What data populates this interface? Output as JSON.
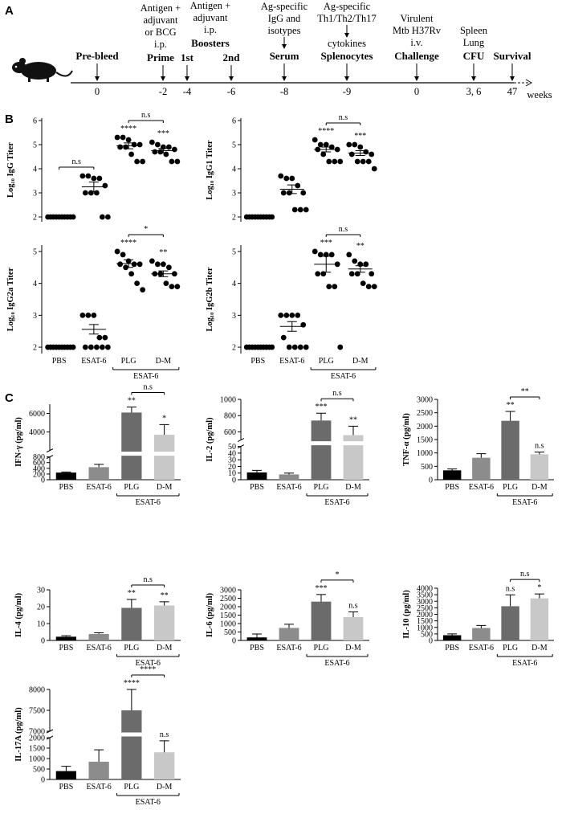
{
  "panel_labels": [
    "A",
    "B",
    "C"
  ],
  "timeline": {
    "events": [
      {
        "label": "Pre-bleed",
        "time": "0"
      },
      {
        "above": [
          "Antigen +",
          "adjuvant",
          "or BCG",
          "i.p."
        ],
        "label": "Prime",
        "time": "-2"
      },
      {
        "above": [
          "Antigen +",
          "adjuvant",
          "i.p."
        ],
        "label": "Boosters",
        "sub": "1st",
        "time": "-4"
      },
      {
        "sub": "2nd",
        "time": "-6"
      },
      {
        "above": [
          "Ag-specific",
          "IgG and",
          "isotypes"
        ],
        "label": "Serum",
        "time": "-8"
      },
      {
        "above": [
          "Ag-specific",
          "Th1/Th2/Th17",
          "cytokines"
        ],
        "label": "Splenocytes",
        "time": "-9"
      },
      {
        "above": [
          "Virulent",
          "Mtb H37Rv",
          "i.v."
        ],
        "label": "Challenge",
        "time": "0"
      },
      {
        "above": [
          "Spleen",
          "Lung"
        ],
        "label": "CFU",
        "time": "3, 6"
      },
      {
        "label": "Survival",
        "time": "47"
      }
    ],
    "unit": "weeks"
  },
  "chart_data": [
    {
      "type": "dotplot",
      "y_label": "Log₁₀ IgG Titer",
      "ylim": [
        1.8,
        6.1
      ],
      "yticks": [
        2,
        3,
        4,
        5,
        6
      ],
      "points": [
        [
          2,
          2,
          2,
          2,
          2,
          2,
          2,
          2,
          2,
          2
        ],
        [
          3.7,
          3.7,
          3.6,
          3.6,
          3.3,
          3.0,
          3.0,
          3.0,
          2.0,
          2.0
        ],
        [
          5.3,
          5.3,
          5.2,
          5.0,
          5.0,
          4.9,
          4.9,
          4.6,
          4.3,
          4.3
        ],
        [
          5.1,
          5.0,
          4.9,
          4.9,
          4.8,
          4.7,
          4.7,
          4.6,
          4.3,
          4.3
        ]
      ],
      "means": [
        2,
        3.25,
        4.95,
        4.75
      ],
      "sems": [
        0,
        0.2,
        0.12,
        0.09
      ],
      "annotations": [
        null,
        null,
        "****",
        "***"
      ],
      "brackets": [
        "n.s",
        null,
        "n.s",
        null
      ]
    },
    {
      "type": "dotplot",
      "y_label": "Log₁₀ IgG1 Titer",
      "ylim": [
        1.8,
        6.1
      ],
      "yticks": [
        2,
        3,
        4,
        5,
        6
      ],
      "points": [
        [
          2,
          2,
          2,
          2,
          2,
          2,
          2,
          2,
          2,
          2
        ],
        [
          3.7,
          3.6,
          3.6,
          3.3,
          3.0,
          3.0,
          3.0,
          2.3,
          2.3,
          2.3
        ],
        [
          5.2,
          5.0,
          5.0,
          4.9,
          4.8,
          4.8,
          4.6,
          4.3,
          4.3,
          4.3
        ],
        [
          5.0,
          5.0,
          4.9,
          4.7,
          4.6,
          4.6,
          4.3,
          4.3,
          4.3,
          4.0
        ]
      ],
      "means": [
        2,
        3.15,
        4.8,
        4.65
      ],
      "sems": [
        0,
        0.18,
        0.1,
        0.1
      ],
      "annotations": [
        null,
        null,
        "****",
        "***"
      ],
      "brackets": [
        null,
        null,
        "n.s",
        null
      ]
    },
    {
      "type": "dotplot",
      "y_label": "Log₁₀ IgG2a Titer",
      "ylim": [
        1.8,
        5.2
      ],
      "yticks": [
        2,
        3,
        4,
        5
      ],
      "categories": [
        "PBS",
        "ESAT-6",
        "PLG",
        "D-M"
      ],
      "group_label": "ESAT-6",
      "points": [
        [
          2,
          2,
          2,
          2,
          2,
          2,
          2,
          2,
          2,
          2
        ],
        [
          3.0,
          3.0,
          3.0,
          2.3,
          2.3,
          2.0,
          2.0,
          2.0,
          2.0,
          2.0
        ],
        [
          5.0,
          4.9,
          4.7,
          4.6,
          4.6,
          4.6,
          4.5,
          4.3,
          4.0,
          3.8
        ],
        [
          4.7,
          4.6,
          4.6,
          4.5,
          4.3,
          4.3,
          4.3,
          4.0,
          3.9,
          3.9
        ]
      ],
      "means": [
        2,
        2.56,
        4.62,
        4.3
      ],
      "sems": [
        0,
        0.15,
        0.12,
        0.09
      ],
      "annotations": [
        null,
        null,
        "****",
        "**"
      ],
      "brackets": [
        null,
        null,
        "*",
        null
      ]
    },
    {
      "type": "dotplot",
      "y_label": "Log₁₀ IgG2b Titer",
      "ylim": [
        1.8,
        5.2
      ],
      "yticks": [
        2,
        3,
        4,
        5
      ],
      "categories": [
        "PBS",
        "ESAT-6",
        "PLG",
        "D-M"
      ],
      "group_label": "ESAT-6",
      "points": [
        [
          2,
          2,
          2,
          2,
          2,
          2,
          2,
          2,
          2,
          2
        ],
        [
          3.0,
          3.0,
          3.0,
          3.0,
          2.7,
          2.3,
          2.0,
          2.0,
          2.0,
          2.0
        ],
        [
          5.0,
          4.9,
          4.9,
          4.9,
          4.6,
          4.3,
          4.3,
          3.9,
          3.9,
          2.0
        ],
        [
          4.9,
          4.7,
          4.6,
          4.6,
          4.3,
          4.3,
          4.3,
          4.0,
          3.9,
          3.9
        ]
      ],
      "means": [
        2,
        2.65,
        4.6,
        4.45
      ],
      "sems": [
        0,
        0.15,
        0.25,
        0.1
      ],
      "annotations": [
        null,
        null,
        "***",
        "**"
      ],
      "brackets": [
        null,
        null,
        "n.s",
        null
      ]
    },
    {
      "type": "bar",
      "y_label": "IFN-γ (pg/ml)",
      "categories": [
        "PBS",
        "ESAT-6",
        "PLG",
        "D-M"
      ],
      "group_label": "ESAT-6",
      "colors": [
        "#000000",
        "#8c8c8c",
        "#6b6b6b",
        "#c8c8c8"
      ],
      "values": [
        250,
        440,
        6100,
        3700
      ],
      "errors": [
        20,
        100,
        600,
        1100
      ],
      "annotations": [
        null,
        null,
        "**",
        "*"
      ],
      "brackets": [
        null,
        null,
        "n.s",
        null
      ],
      "ylim": [
        0,
        7000
      ],
      "axis_break": [
        800,
        2000
      ],
      "yticks": [
        0,
        200,
        400,
        600,
        800,
        4000,
        6000
      ]
    },
    {
      "type": "bar",
      "y_label": "IL-2 (pg/ml)",
      "categories": [
        "PBS",
        "ESAT-6",
        "PLG",
        "D-M"
      ],
      "group_label": "ESAT-6",
      "colors": [
        "#000000",
        "#8c8c8c",
        "#6b6b6b",
        "#c8c8c8"
      ],
      "values": [
        11,
        8,
        740,
        560
      ],
      "errors": [
        3,
        2,
        90,
        110
      ],
      "annotations": [
        null,
        null,
        "***",
        "**"
      ],
      "brackets": [
        null,
        null,
        "n.s",
        null
      ],
      "ylim": [
        0,
        1000
      ],
      "axis_break": [
        50,
        500
      ],
      "yticks": [
        0,
        10,
        20,
        30,
        40,
        50,
        600,
        800,
        1000
      ]
    },
    {
      "type": "bar",
      "y_label": "TNF-α (pg/ml)",
      "categories": [
        "PBS",
        "ESAT-6",
        "PLG",
        "D-M"
      ],
      "group_label": "ESAT-6",
      "colors": [
        "#000000",
        "#8c8c8c",
        "#6b6b6b",
        "#c8c8c8"
      ],
      "values": [
        350,
        820,
        2200,
        950
      ],
      "errors": [
        50,
        150,
        350,
        80
      ],
      "annotations": [
        null,
        null,
        "**",
        "n.s"
      ],
      "brackets": [
        null,
        null,
        "**",
        null
      ],
      "ylim": [
        0,
        3000
      ],
      "yticks": [
        0,
        500,
        1000,
        1500,
        2000,
        2500,
        3000
      ]
    },
    {
      "type": "bar",
      "y_label": "IL-4 (pg/ml)",
      "categories": [
        "PBS",
        "ESAT-6",
        "PLG",
        "D-M"
      ],
      "group_label": "ESAT-6",
      "colors": [
        "#000000",
        "#8c8c8c",
        "#6b6b6b",
        "#c8c8c8"
      ],
      "values": [
        2.2,
        3.8,
        19.3,
        20.7
      ],
      "errors": [
        0.6,
        0.7,
        5,
        2.2
      ],
      "annotations": [
        null,
        null,
        "**",
        "**"
      ],
      "brackets": [
        null,
        null,
        "n.s",
        null
      ],
      "ylim": [
        0,
        30
      ],
      "yticks": [
        0,
        10,
        20,
        30
      ]
    },
    {
      "type": "bar",
      "y_label": "IL-6 (pg/ml)",
      "categories": [
        "PBS",
        "ESAT-6",
        "PLG",
        "D-M"
      ],
      "group_label": "ESAT-6",
      "colors": [
        "#000000",
        "#8c8c8c",
        "#6b6b6b",
        "#c8c8c8"
      ],
      "values": [
        180,
        740,
        2300,
        1380
      ],
      "errors": [
        200,
        220,
        420,
        310
      ],
      "annotations": [
        null,
        null,
        "***",
        "n.s"
      ],
      "brackets": [
        null,
        null,
        "*",
        null
      ],
      "ylim": [
        0,
        3000
      ],
      "yticks": [
        0,
        500,
        1000,
        1500,
        2000,
        2500,
        3000
      ]
    },
    {
      "type": "bar",
      "y_label": "IL-10 (pg/ml)",
      "categories": [
        "PBS",
        "ESAT-6",
        "PLG",
        "D-M"
      ],
      "group_label": "ESAT-6",
      "colors": [
        "#000000",
        "#8c8c8c",
        "#6b6b6b",
        "#c8c8c8"
      ],
      "values": [
        400,
        950,
        2620,
        3220
      ],
      "errors": [
        100,
        200,
        870,
        340
      ],
      "annotations": [
        null,
        null,
        "n.s",
        "*"
      ],
      "brackets": [
        null,
        null,
        "n.s",
        null
      ],
      "ylim": [
        0,
        4000
      ],
      "yticks": [
        0,
        500,
        1000,
        1500,
        2000,
        2500,
        3000,
        3500,
        4000
      ]
    },
    {
      "type": "bar",
      "y_label": "IL-17A (pg/ml)",
      "categories": [
        "PBS",
        "ESAT-6",
        "PLG",
        "D-M"
      ],
      "group_label": "ESAT-6",
      "colors": [
        "#000000",
        "#8c8c8c",
        "#6b6b6b",
        "#c8c8c8"
      ],
      "values": [
        400,
        850,
        7500,
        1300
      ],
      "errors": [
        230,
        570,
        500,
        550
      ],
      "annotations": [
        null,
        null,
        "****",
        "n.s"
      ],
      "brackets": [
        null,
        null,
        "****",
        null
      ],
      "ylim": [
        0,
        8000
      ],
      "axis_break": [
        2000,
        7000
      ],
      "yticks": [
        0,
        500,
        1000,
        1500,
        2000,
        7000,
        7500,
        8000
      ]
    }
  ]
}
